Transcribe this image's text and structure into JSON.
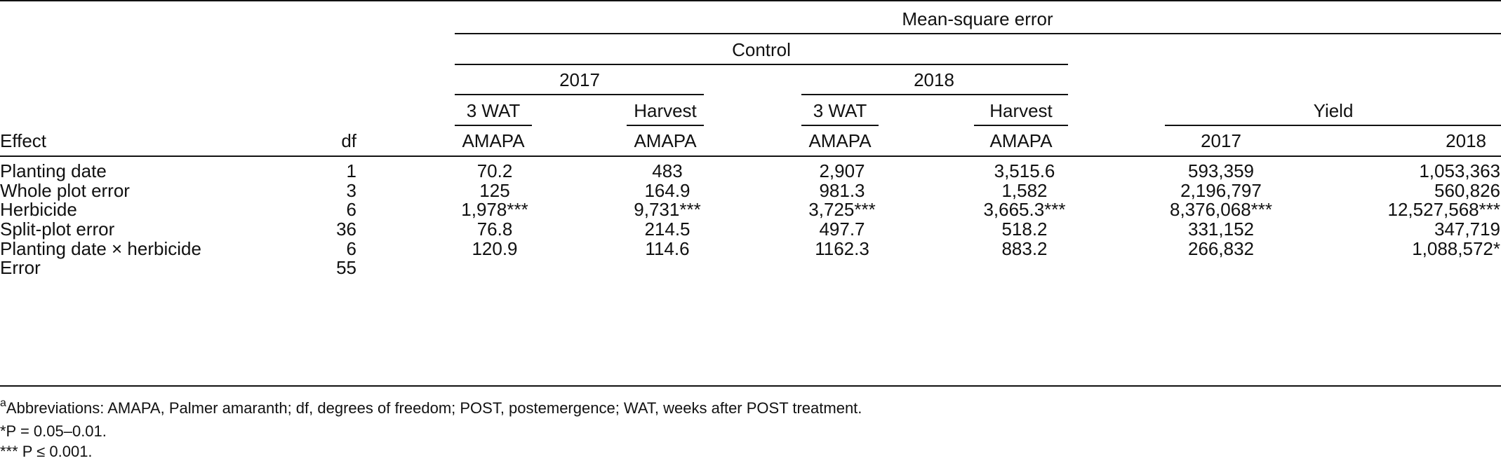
{
  "header": {
    "mse": "Mean-square error",
    "control": "Control",
    "year_2017": "2017",
    "year_2018": "2018",
    "wat1": "3 WAT",
    "harvest1": "Harvest",
    "wat2": "3 WAT",
    "harvest2": "Harvest",
    "yield": "Yield",
    "effect": "Effect",
    "df": "df",
    "amapa1": "AMAPA",
    "amapa2": "AMAPA",
    "amapa3": "AMAPA",
    "amapa4": "AMAPA",
    "yield_2017": "2017",
    "yield_2018": "2018"
  },
  "rows": [
    {
      "effect": "Planting date",
      "df": "1",
      "c1": "70.2",
      "c2": "483",
      "c3": "2,907",
      "c4": "3,515.6",
      "c5": "593,359",
      "c6": "1,053,363"
    },
    {
      "effect": "Whole plot error",
      "df": "3",
      "c1": "125",
      "c2": "164.9",
      "c3": "981.3",
      "c4": "1,582",
      "c5": "2,196,797",
      "c6": "560,826"
    },
    {
      "effect": "Herbicide",
      "df": "6",
      "c1": "1,978***",
      "c2": "9,731***",
      "c3": "3,725***",
      "c4": "3,665.3***",
      "c5": "8,376,068***",
      "c6": "12,527,568***"
    },
    {
      "effect": "Split-plot error",
      "df": "36",
      "c1": "76.8",
      "c2": "214.5",
      "c3": "497.7",
      "c4": "518.2",
      "c5": "331,152",
      "c6": "347,719"
    },
    {
      "effect": "Planting date × herbicide",
      "df": "6",
      "c1": "120.9",
      "c2": "114.6",
      "c3": "1162.3",
      "c4": "883.2",
      "c5": "266,832",
      "c6": "1,088,572*"
    },
    {
      "effect": "Error",
      "df": "55",
      "c1": "",
      "c2": "",
      "c3": "",
      "c4": "",
      "c5": "",
      "c6": ""
    }
  ],
  "footnotes": {
    "note_a_mark": "a",
    "note_a": "Abbreviations: AMAPA, Palmer amaranth; df, degrees of freedom; POST, postemergence; WAT, weeks after POST treatment.",
    "note_b": "*P = 0.05–0.01.",
    "note_c": "*** P ≤ 0.001."
  }
}
